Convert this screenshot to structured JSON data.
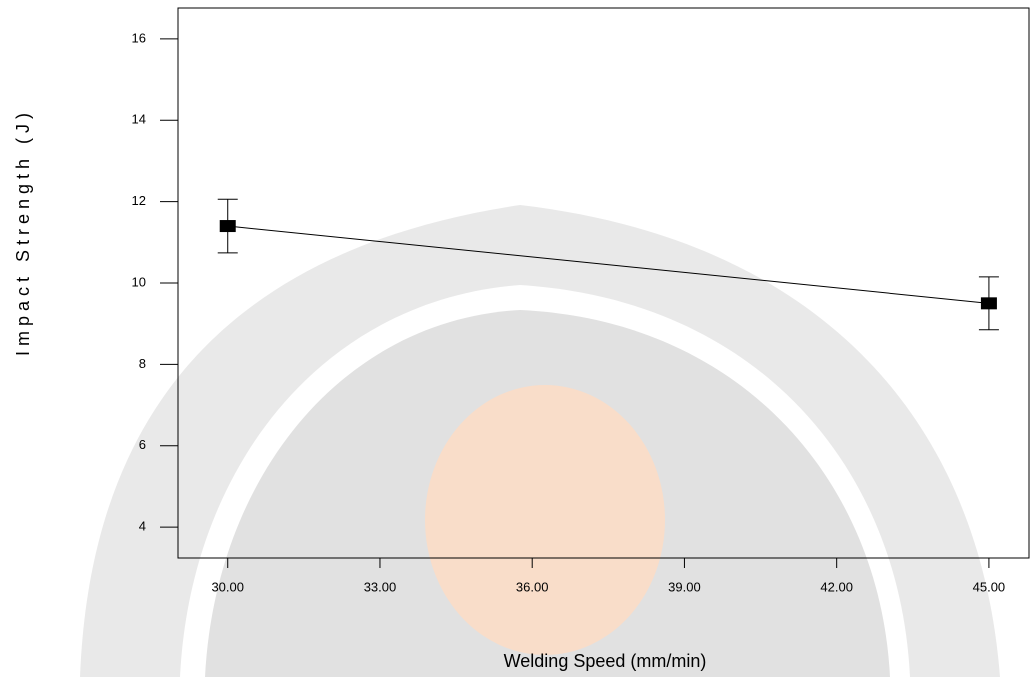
{
  "chart_data": {
    "type": "line",
    "x_label": "Welding Speed (mm/min)",
    "y_label": "Impact Strength (J)",
    "x": [
      30,
      45
    ],
    "values": [
      11.4,
      9.5
    ],
    "errors": [
      0.66,
      0.65
    ],
    "color": "#000000",
    "xlim": [
      29.02,
      45.79
    ],
    "xticks": [
      {
        "value": 30,
        "label": "30.00"
      },
      {
        "value": 33,
        "label": "33.00"
      },
      {
        "value": 36,
        "label": "36.00"
      },
      {
        "value": 39,
        "label": "39.00"
      },
      {
        "value": 42,
        "label": "42.00"
      },
      {
        "value": 45,
        "label": "45.00"
      }
    ],
    "ylim": [
      3.24,
      16.76
    ],
    "yticks": [
      4,
      6,
      8,
      10,
      12,
      14,
      16
    ]
  }
}
